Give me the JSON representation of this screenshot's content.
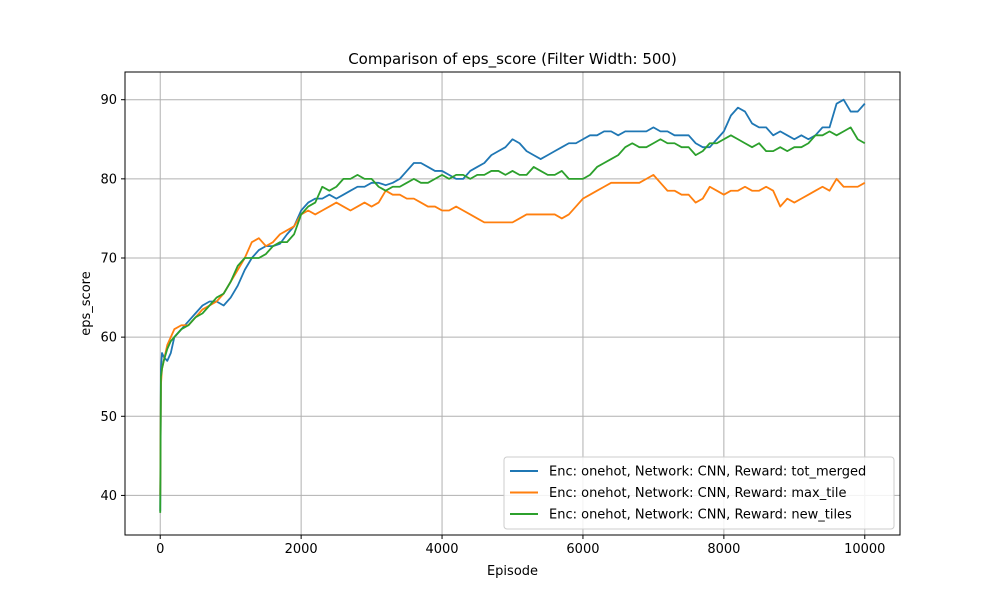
{
  "chart_data": {
    "type": "line",
    "title": "Comparison of eps_score (Filter Width: 500)",
    "xlabel": "Episode",
    "ylabel": "eps_score",
    "xlim": [
      -500,
      10500
    ],
    "ylim": [
      35,
      93.5
    ],
    "xticks": [
      0,
      2000,
      4000,
      6000,
      8000,
      10000
    ],
    "yticks": [
      40,
      50,
      60,
      70,
      80,
      90
    ],
    "grid": true,
    "legend_position": "lower-right",
    "series": [
      {
        "name": "Enc: onehot, Network: CNN, Reward: tot_merged",
        "color": "#1f77b4",
        "x": [
          0,
          10,
          25,
          50,
          100,
          150,
          200,
          300,
          400,
          500,
          600,
          700,
          800,
          900,
          1000,
          1100,
          1200,
          1300,
          1400,
          1500,
          1600,
          1700,
          1800,
          1900,
          2000,
          2100,
          2200,
          2300,
          2400,
          2500,
          2600,
          2700,
          2800,
          2900,
          3000,
          3100,
          3200,
          3300,
          3400,
          3500,
          3600,
          3700,
          3800,
          3900,
          4000,
          4100,
          4200,
          4300,
          4400,
          4500,
          4600,
          4700,
          4800,
          4900,
          5000,
          5100,
          5200,
          5300,
          5400,
          5500,
          5600,
          5700,
          5800,
          5900,
          6000,
          6100,
          6200,
          6300,
          6400,
          6500,
          6600,
          6700,
          6800,
          6900,
          7000,
          7100,
          7200,
          7300,
          7400,
          7500,
          7600,
          7700,
          7800,
          7900,
          8000,
          8100,
          8200,
          8300,
          8400,
          8500,
          8600,
          8700,
          8800,
          8900,
          9000,
          9100,
          9200,
          9300,
          9400,
          9500,
          9600,
          9700,
          9800,
          9900,
          10000
        ],
        "values": [
          38,
          56,
          58,
          57.5,
          57,
          58,
          60,
          61,
          62,
          63,
          64,
          64.5,
          64.5,
          64,
          65,
          66.5,
          68.5,
          70,
          71,
          71.5,
          71.5,
          71.8,
          73,
          74,
          76,
          77,
          77.5,
          77.5,
          78,
          77.5,
          78,
          78.5,
          79,
          79,
          79.5,
          79.5,
          79.2,
          79.5,
          80,
          81,
          82,
          82,
          81.5,
          81,
          81,
          80.5,
          80,
          80,
          81,
          81.5,
          82,
          83,
          83.5,
          84,
          85,
          84.5,
          83.5,
          83,
          82.5,
          83,
          83.5,
          84,
          84.5,
          84.5,
          85,
          85.5,
          85.5,
          86,
          86,
          85.5,
          86,
          86,
          86,
          86,
          86.5,
          86,
          86,
          85.5,
          85.5,
          85.5,
          84.5,
          84,
          84,
          85,
          86,
          88,
          89,
          88.5,
          87,
          86.5,
          86.5,
          85.5,
          86,
          85.5,
          85,
          85.5,
          85,
          85.5,
          86.5,
          86.5,
          89.5,
          90,
          88.5,
          88.5,
          89.5
        ]
      },
      {
        "name": "Enc: onehot, Network: CNN, Reward: max_tile",
        "color": "#ff7f0e",
        "x": [
          0,
          10,
          25,
          50,
          100,
          150,
          200,
          300,
          400,
          500,
          600,
          700,
          800,
          900,
          1000,
          1100,
          1200,
          1300,
          1400,
          1500,
          1600,
          1700,
          1800,
          1900,
          2000,
          2100,
          2200,
          2300,
          2400,
          2500,
          2600,
          2700,
          2800,
          2900,
          3000,
          3100,
          3200,
          3300,
          3400,
          3500,
          3600,
          3700,
          3800,
          3900,
          4000,
          4100,
          4200,
          4300,
          4400,
          4500,
          4600,
          4700,
          4800,
          4900,
          5000,
          5100,
          5200,
          5300,
          5400,
          5500,
          5600,
          5700,
          5800,
          5900,
          6000,
          6100,
          6200,
          6300,
          6400,
          6500,
          6600,
          6700,
          6800,
          6900,
          7000,
          7100,
          7200,
          7300,
          7400,
          7500,
          7600,
          7700,
          7800,
          7900,
          8000,
          8100,
          8200,
          8300,
          8400,
          8500,
          8600,
          8700,
          8800,
          8900,
          9000,
          9100,
          9200,
          9300,
          9400,
          9500,
          9600,
          9700,
          9800,
          9900,
          10000
        ],
        "values": [
          40,
          54,
          56,
          57,
          59,
          60,
          61,
          61.5,
          61.5,
          62.5,
          63.5,
          64,
          64.5,
          65.5,
          67,
          68.5,
          70,
          72,
          72.5,
          71.5,
          72,
          73,
          73.5,
          74,
          75.5,
          76,
          75.5,
          76,
          76.5,
          77,
          76.5,
          76,
          76.5,
          77,
          76.5,
          77,
          78.5,
          78,
          78,
          77.5,
          77.5,
          77,
          76.5,
          76.5,
          76,
          76,
          76.5,
          76,
          75.5,
          75,
          74.5,
          74.5,
          74.5,
          74.5,
          74.5,
          75,
          75.5,
          75.5,
          75.5,
          75.5,
          75.5,
          75,
          75.5,
          76.5,
          77.5,
          78,
          78.5,
          79,
          79.5,
          79.5,
          79.5,
          79.5,
          79.5,
          80,
          80.5,
          79.5,
          78.5,
          78.5,
          78,
          78,
          77,
          77.5,
          79,
          78.5,
          78,
          78.5,
          78.5,
          79,
          78.5,
          78.5,
          79,
          78.5,
          76.5,
          77.5,
          77,
          77.5,
          78,
          78.5,
          79,
          78.5,
          80,
          79,
          79,
          79,
          79.5
        ]
      },
      {
        "name": "Enc: onehot, Network: CNN, Reward: new_tiles",
        "color": "#2ca02c",
        "x": [
          0,
          10,
          25,
          50,
          100,
          150,
          200,
          300,
          400,
          500,
          600,
          700,
          800,
          900,
          1000,
          1100,
          1200,
          1300,
          1400,
          1500,
          1600,
          1700,
          1800,
          1900,
          2000,
          2100,
          2200,
          2300,
          2400,
          2500,
          2600,
          2700,
          2800,
          2900,
          3000,
          3100,
          3200,
          3300,
          3400,
          3500,
          3600,
          3700,
          3800,
          3900,
          4000,
          4100,
          4200,
          4300,
          4400,
          4500,
          4600,
          4700,
          4800,
          4900,
          5000,
          5100,
          5200,
          5300,
          5400,
          5500,
          5600,
          5700,
          5800,
          5900,
          6000,
          6100,
          6200,
          6300,
          6400,
          6500,
          6600,
          6700,
          6800,
          6900,
          7000,
          7100,
          7200,
          7300,
          7400,
          7500,
          7600,
          7700,
          7800,
          7900,
          8000,
          8100,
          8200,
          8300,
          8400,
          8500,
          8600,
          8700,
          8800,
          8900,
          9000,
          9100,
          9200,
          9300,
          9400,
          9500,
          9600,
          9700,
          9800,
          9900,
          10000
        ],
        "values": [
          37.8,
          55,
          56,
          57,
          58.5,
          59.5,
          60,
          61,
          61.5,
          62.5,
          63,
          64,
          65,
          65.5,
          67,
          69,
          70,
          70,
          70,
          70.5,
          71.5,
          72,
          72,
          73,
          75.5,
          76.5,
          77,
          79,
          78.5,
          79,
          80,
          80,
          80.5,
          80,
          80,
          79,
          78.5,
          79,
          79,
          79.5,
          80,
          79.5,
          79.5,
          80,
          80.5,
          80,
          80.5,
          80.5,
          80,
          80.5,
          80.5,
          81,
          81,
          80.5,
          81,
          80.5,
          80.5,
          81.5,
          81,
          80.5,
          80.5,
          81,
          80,
          80,
          80,
          80.5,
          81.5,
          82,
          82.5,
          83,
          84,
          84.5,
          84,
          84,
          84.5,
          85,
          84.5,
          84.5,
          84,
          84,
          83,
          83.5,
          84.5,
          84.5,
          85,
          85.5,
          85,
          84.5,
          84,
          84.5,
          83.5,
          83.5,
          84,
          83.5,
          84,
          84,
          84.5,
          85.5,
          85.5,
          86,
          85.5,
          86,
          86.5,
          85,
          84.5
        ]
      }
    ]
  }
}
